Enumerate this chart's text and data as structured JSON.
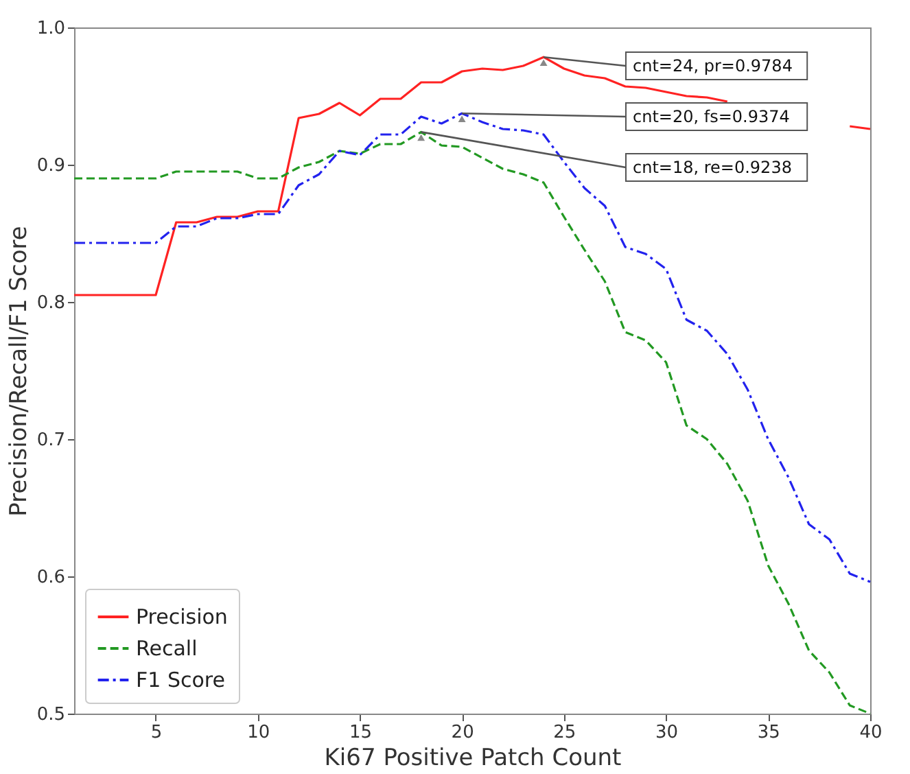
{
  "chart_data": {
    "type": "line",
    "xlabel": "Ki67 Positive Patch Count",
    "ylabel": "Precision/Recall/F1 Score",
    "x": [
      1,
      2,
      3,
      4,
      5,
      6,
      7,
      8,
      9,
      10,
      11,
      12,
      13,
      14,
      15,
      16,
      17,
      18,
      19,
      20,
      21,
      22,
      23,
      24,
      25,
      26,
      27,
      28,
      29,
      30,
      31,
      32,
      33,
      34,
      35,
      36,
      37,
      38,
      39,
      40
    ],
    "series": [
      {
        "name": "Precision",
        "color": "#ff2222",
        "line_style": "solid",
        "values": [
          0.805,
          0.805,
          0.805,
          0.805,
          0.805,
          0.858,
          0.858,
          0.862,
          0.862,
          0.866,
          0.866,
          0.934,
          0.937,
          0.945,
          0.936,
          0.948,
          0.948,
          0.96,
          0.96,
          0.968,
          0.97,
          0.969,
          0.972,
          0.9784,
          0.97,
          0.965,
          0.963,
          0.957,
          0.956,
          0.953,
          0.95,
          0.949,
          0.946,
          null,
          null,
          null,
          null,
          null,
          0.928,
          0.926
        ]
      },
      {
        "name": "Recall",
        "color": "#229922",
        "line_style": "dashed",
        "values": [
          0.89,
          0.89,
          0.89,
          0.89,
          0.89,
          0.895,
          0.895,
          0.895,
          0.895,
          0.89,
          0.89,
          0.898,
          0.902,
          0.91,
          0.908,
          0.915,
          0.915,
          0.9238,
          0.914,
          0.913,
          0.905,
          0.897,
          0.893,
          0.887,
          0.862,
          0.838,
          0.815,
          0.778,
          0.772,
          0.756,
          0.71,
          0.7,
          0.682,
          0.655,
          0.608,
          0.58,
          0.546,
          0.53,
          0.506,
          0.5
        ]
      },
      {
        "name": "F1 Score",
        "color": "#2222ee",
        "line_style": "dashdot",
        "values": [
          0.843,
          0.843,
          0.843,
          0.843,
          0.843,
          0.855,
          0.855,
          0.861,
          0.861,
          0.864,
          0.864,
          0.885,
          0.893,
          0.91,
          0.907,
          0.922,
          0.922,
          0.935,
          0.93,
          0.9374,
          0.931,
          0.926,
          0.925,
          0.922,
          0.902,
          0.883,
          0.87,
          0.84,
          0.835,
          0.824,
          0.787,
          0.779,
          0.762,
          0.736,
          0.7,
          0.672,
          0.638,
          0.627,
          0.602,
          0.596
        ]
      }
    ],
    "xlim": [
      1,
      40
    ],
    "xticks": [
      5,
      10,
      15,
      20,
      25,
      30,
      35,
      40
    ],
    "ylim": [
      0.5,
      1.0
    ],
    "yticks": [
      0.5,
      0.6,
      0.7,
      0.8,
      0.9,
      {
        "value": 1.0,
        "label": "1.0"
      }
    ],
    "grid": false,
    "legend": "bottom left",
    "marker": "none",
    "annotations": [
      {
        "text": "cnt=24, pr=0.9784",
        "x": 24,
        "y": 0.9784
      },
      {
        "text": "cnt=20, fs=0.9374",
        "x": 20,
        "y": 0.9374
      },
      {
        "text": "cnt=18, re=0.9238",
        "x": 18,
        "y": 0.9238
      }
    ]
  }
}
